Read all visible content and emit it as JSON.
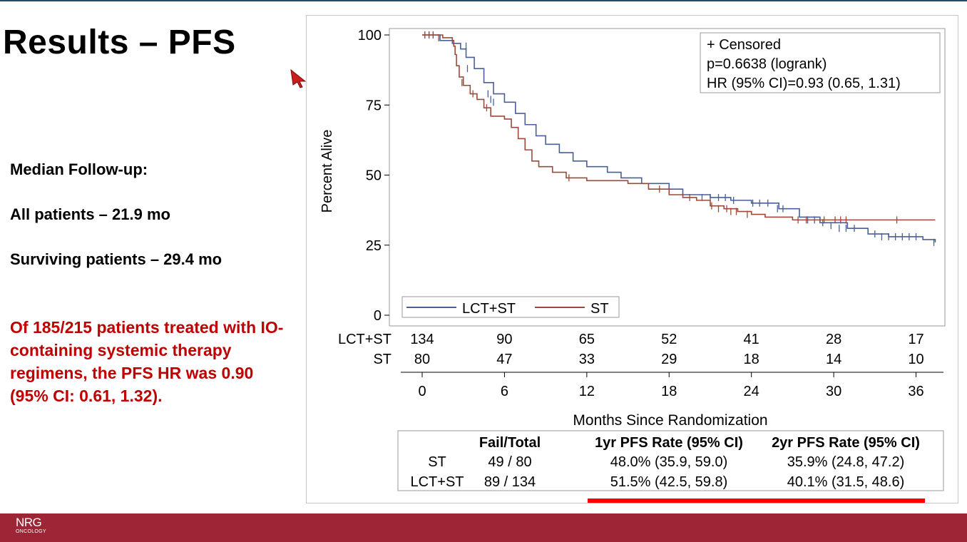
{
  "slide": {
    "title": "Results – PFS",
    "follow_up_heading": "Median Follow-up:",
    "all_patients": "All patients – 21.9 mo",
    "surviving_patients": "Surviving patients – 29.4 mo",
    "io_note": "Of 185/215 patients treated with IO-containing systemic therapy regimens, the PFS HR was 0.90 (95% CI: 0.61, 1.32).",
    "footer_logo_line1": "NRG",
    "footer_logo_line2": "ONCOLOGY",
    "colors": {
      "footer": "#9c2536",
      "note_text": "#c00000",
      "highlight_bar": "#ff0000"
    }
  },
  "chart_data": {
    "type": "line",
    "subtype": "kaplan-meier step",
    "xlabel": "Months Since Randomization",
    "ylabel": "Percent Alive",
    "xlim": [
      0,
      38
    ],
    "ylim": [
      0,
      100
    ],
    "xticks": [
      0,
      6,
      12,
      18,
      24,
      30,
      36
    ],
    "yticks": [
      0,
      25,
      50,
      75,
      100
    ],
    "annotation_lines": [
      "+ Censored",
      "p=0.6638 (logrank)",
      "HR (95% CI)=0.93 (0.65, 1.31)"
    ],
    "legend_position": "bottom-left",
    "series": [
      {
        "name": "LCT+ST",
        "color": "#4a5f96",
        "steps": [
          [
            0,
            100
          ],
          [
            1.3,
            98
          ],
          [
            2.2,
            97
          ],
          [
            2.8,
            95
          ],
          [
            3.2,
            92
          ],
          [
            3.8,
            88
          ],
          [
            4.5,
            83
          ],
          [
            5.2,
            79
          ],
          [
            6,
            76
          ],
          [
            6.8,
            72
          ],
          [
            7.5,
            68
          ],
          [
            8.3,
            64
          ],
          [
            9,
            61
          ],
          [
            10,
            58
          ],
          [
            11,
            55
          ],
          [
            12,
            53
          ],
          [
            13.5,
            51
          ],
          [
            14.5,
            49
          ],
          [
            16,
            47
          ],
          [
            18,
            45
          ],
          [
            19,
            43
          ],
          [
            21,
            42
          ],
          [
            22.5,
            41
          ],
          [
            24,
            40
          ],
          [
            26,
            38
          ],
          [
            27.5,
            35
          ],
          [
            29,
            33
          ],
          [
            31,
            31
          ],
          [
            32.5,
            29
          ],
          [
            34,
            28
          ],
          [
            36.5,
            27
          ],
          [
            37.4,
            26
          ]
        ],
        "censor_marks": [
          [
            0.2,
            100
          ],
          [
            0.5,
            100
          ],
          [
            0.8,
            100
          ],
          [
            3.2,
            96
          ],
          [
            3.3,
            88
          ],
          [
            4.8,
            79
          ],
          [
            5,
            77
          ],
          [
            5.2,
            76
          ],
          [
            20.4,
            42
          ],
          [
            21,
            42
          ],
          [
            21.6,
            42
          ],
          [
            22.1,
            42
          ],
          [
            22.7,
            41
          ],
          [
            24.1,
            40
          ],
          [
            24.6,
            40
          ],
          [
            25.2,
            40
          ],
          [
            25.9,
            38
          ],
          [
            26.3,
            38
          ],
          [
            28.1,
            34
          ],
          [
            28.6,
            34
          ],
          [
            29.2,
            33
          ],
          [
            29.8,
            32
          ],
          [
            30.4,
            31
          ],
          [
            30.9,
            31
          ],
          [
            31.5,
            31
          ],
          [
            33,
            29
          ],
          [
            33.5,
            28
          ],
          [
            34,
            28
          ],
          [
            34.5,
            28
          ],
          [
            35,
            28
          ],
          [
            35.5,
            28
          ],
          [
            36,
            28
          ],
          [
            37.3,
            26
          ]
        ]
      },
      {
        "name": "ST",
        "color": "#9b4a3a",
        "steps": [
          [
            0,
            100
          ],
          [
            1.5,
            99
          ],
          [
            2.2,
            98
          ],
          [
            2.3,
            96
          ],
          [
            2.4,
            93
          ],
          [
            2.5,
            89
          ],
          [
            2.7,
            85
          ],
          [
            3,
            82
          ],
          [
            3.5,
            79
          ],
          [
            4,
            77
          ],
          [
            4.5,
            74
          ],
          [
            5,
            71
          ],
          [
            6,
            70
          ],
          [
            6.5,
            67
          ],
          [
            7,
            63
          ],
          [
            7.5,
            59
          ],
          [
            8,
            55
          ],
          [
            8.5,
            53
          ],
          [
            9.5,
            51
          ],
          [
            10.5,
            49
          ],
          [
            12,
            48
          ],
          [
            15,
            47
          ],
          [
            16.5,
            45
          ],
          [
            18,
            43
          ],
          [
            19,
            42
          ],
          [
            20,
            41
          ],
          [
            21,
            39
          ],
          [
            22,
            38
          ],
          [
            23,
            37
          ],
          [
            24,
            36
          ],
          [
            25,
            35
          ],
          [
            27,
            34
          ],
          [
            37.4,
            34
          ]
        ],
        "censor_marks": [
          [
            0.2,
            100
          ],
          [
            0.5,
            100
          ],
          [
            0.8,
            100
          ],
          [
            1.2,
            99
          ],
          [
            2.9,
            83
          ],
          [
            3.7,
            79
          ],
          [
            4.7,
            74
          ],
          [
            10.7,
            49
          ],
          [
            17.3,
            45
          ],
          [
            19.5,
            42
          ],
          [
            21.1,
            39
          ],
          [
            21.6,
            38
          ],
          [
            22.2,
            38
          ],
          [
            22.5,
            37
          ],
          [
            22.9,
            37
          ],
          [
            23.7,
            36
          ],
          [
            27.4,
            34
          ],
          [
            28,
            34
          ],
          [
            29.3,
            34
          ],
          [
            30.1,
            34
          ],
          [
            30.5,
            34
          ],
          [
            30.9,
            34
          ],
          [
            34.6,
            34
          ]
        ]
      }
    ],
    "risk_table": {
      "times": [
        0,
        6,
        12,
        18,
        24,
        30,
        36
      ],
      "rows": [
        {
          "label": "LCT+ST",
          "counts": [
            "134",
            "90",
            "65",
            "52",
            "41",
            "28",
            "17"
          ]
        },
        {
          "label": "ST",
          "counts": [
            "80",
            "47",
            "33",
            "29",
            "18",
            "14",
            "10"
          ]
        }
      ]
    },
    "summary_table": {
      "headers": [
        "",
        "Fail/Total",
        "1yr PFS Rate (95% CI)",
        "2yr PFS Rate (95% CI)"
      ],
      "rows": [
        [
          "ST",
          "49 / 80",
          "48.0% (35.9, 59.0)",
          "35.9% (24.8, 47.2)"
        ],
        [
          "LCT+ST",
          "89 / 134",
          "51.5% (42.5, 59.8)",
          "40.1% (31.5, 48.6)"
        ]
      ]
    }
  }
}
